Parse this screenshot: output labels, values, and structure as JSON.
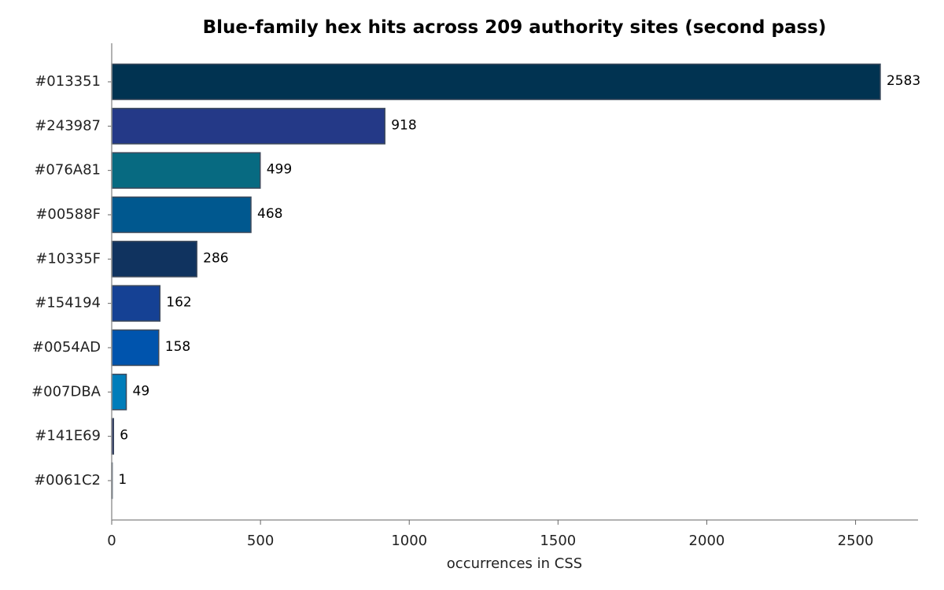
{
  "chart_data": {
    "type": "bar",
    "orientation": "horizontal",
    "title": "Blue-family hex hits across 209 authority sites (second pass)",
    "xlabel": "occurrences in CSS",
    "ylabel": "",
    "xlim": [
      0,
      2710
    ],
    "xticks": [
      0,
      500,
      1000,
      1500,
      2000,
      2500
    ],
    "grid": false,
    "categories": [
      "#013351",
      "#243987",
      "#076A81",
      "#00588F",
      "#10335F",
      "#154194",
      "#0054AD",
      "#007DBA",
      "#141E69",
      "#0061C2"
    ],
    "values": [
      2583,
      918,
      499,
      468,
      286,
      162,
      158,
      49,
      6,
      1
    ],
    "colors": [
      "#013351",
      "#243987",
      "#076A81",
      "#00588F",
      "#10335F",
      "#154194",
      "#0054AD",
      "#007DBA",
      "#141E69",
      "#0061C2"
    ]
  }
}
